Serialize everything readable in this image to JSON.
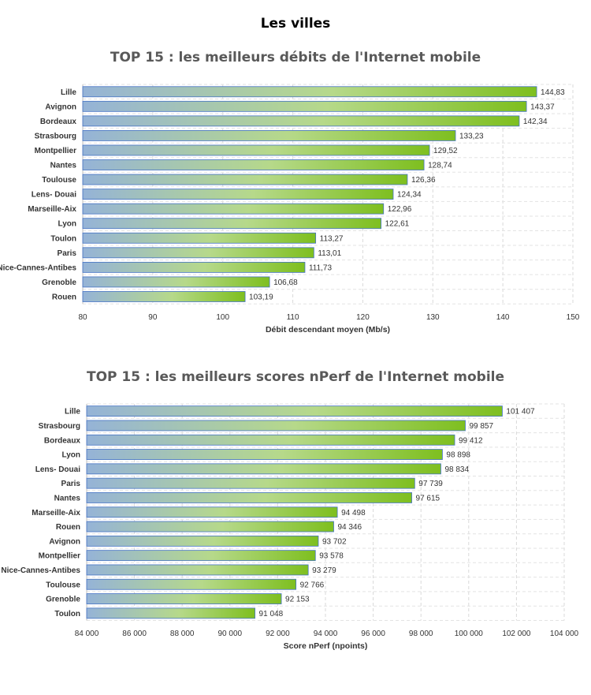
{
  "page": {
    "heading": "Les villes"
  },
  "chart_data": [
    {
      "type": "bar",
      "orientation": "horizontal",
      "title": "TOP 15 : les meilleurs débits de l'Internet mobile",
      "xlabel": "Débit descendant moyen (Mb/s)",
      "ylabel": "",
      "xlim": [
        80,
        150
      ],
      "ticks": [
        80,
        90,
        100,
        110,
        120,
        130,
        140,
        150
      ],
      "tick_labels": [
        "80",
        "90",
        "100",
        "110",
        "120",
        "130",
        "140",
        "150"
      ],
      "grid": true,
      "colors": {
        "bar_start": "#95b3d7",
        "bar_end": "#7ebf1f",
        "border": "#4472c4"
      },
      "categories": [
        "Lille",
        "Avignon",
        "Bordeaux",
        "Strasbourg",
        "Montpellier",
        "Nantes",
        "Toulouse",
        "Lens- Douai",
        "Marseille-Aix",
        "Lyon",
        "Toulon",
        "Paris",
        "Nice-Cannes-Antibes",
        "Grenoble",
        "Rouen"
      ],
      "values": [
        144.83,
        143.37,
        142.34,
        133.23,
        129.52,
        128.74,
        126.36,
        124.34,
        122.96,
        122.61,
        113.27,
        113.01,
        111.73,
        106.68,
        103.19
      ],
      "value_labels": [
        "144,83",
        "143,37",
        "142,34",
        "133,23",
        "129,52",
        "128,74",
        "126,36",
        "124,34",
        "122,96",
        "122,61",
        "113,27",
        "113,01",
        "111,73",
        "106,68",
        "103,19"
      ]
    },
    {
      "type": "bar",
      "orientation": "horizontal",
      "title": "TOP 15 : les meilleurs scores nPerf de l'Internet mobile",
      "xlabel": "Score nPerf (npoints)",
      "ylabel": "",
      "xlim": [
        84000,
        104000
      ],
      "ticks": [
        84000,
        86000,
        88000,
        90000,
        92000,
        94000,
        96000,
        98000,
        100000,
        102000,
        104000
      ],
      "tick_labels": [
        "84 000",
        "86 000",
        "88 000",
        "90 000",
        "92 000",
        "94 000",
        "96 000",
        "98 000",
        "100 000",
        "102 000",
        "104 000"
      ],
      "grid": true,
      "colors": {
        "bar_start": "#95b3d7",
        "bar_end": "#7ebf1f",
        "border": "#4472c4"
      },
      "categories": [
        "Lille",
        "Strasbourg",
        "Bordeaux",
        "Lyon",
        "Lens- Douai",
        "Paris",
        "Nantes",
        "Marseille-Aix",
        "Rouen",
        "Avignon",
        "Montpellier",
        "Nice-Cannes-Antibes",
        "Toulouse",
        "Grenoble",
        "Toulon"
      ],
      "values": [
        101407,
        99857,
        99412,
        98898,
        98834,
        97739,
        97615,
        94498,
        94346,
        93702,
        93578,
        93279,
        92766,
        92153,
        91048
      ],
      "value_labels": [
        "101 407",
        "99 857",
        "99 412",
        "98 898",
        "98 834",
        "97 739",
        "97 615",
        "94 498",
        "94 346",
        "93 702",
        "93 578",
        "93 279",
        "92 766",
        "92 153",
        "91 048"
      ]
    }
  ]
}
